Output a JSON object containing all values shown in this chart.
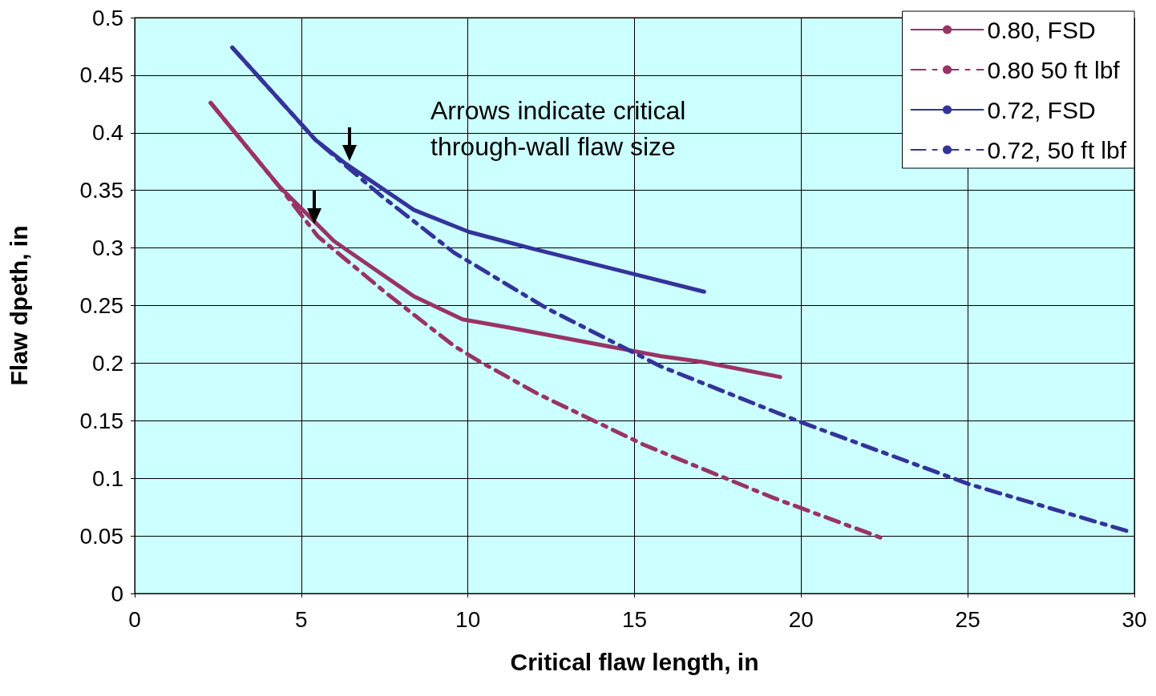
{
  "chart_data": {
    "type": "line",
    "xlabel": "Critical flaw length, in",
    "ylabel": "Flaw dpeth, in",
    "xlim": [
      0,
      30
    ],
    "xticks": [
      0,
      5,
      10,
      15,
      20,
      25,
      30
    ],
    "ylim": [
      0,
      0.5
    ],
    "yticks": [
      0,
      0.05,
      0.1,
      0.15,
      0.2,
      0.25,
      0.3,
      0.35,
      0.4,
      0.45,
      0.5
    ],
    "grid": true,
    "legend": "top right",
    "marker": "none",
    "annotations": [
      "Arrows indicate critical\nthrough-wall flaw size"
    ],
    "series": [
      {
        "name": "0.80, FSD",
        "color": "#993366",
        "line_style": "solid",
        "x": [
          2.28,
          4.32,
          5.98,
          7.18,
          8.38,
          9.84,
          11.2,
          15.8,
          17.06,
          19.37
        ],
        "values": [
          0.426,
          0.354,
          0.306,
          0.282,
          0.258,
          0.238,
          0.231,
          0.206,
          0.201,
          0.188
        ]
      },
      {
        "name": "0.80 50 ft lbf",
        "color": "#993366",
        "line_style": "dashed",
        "x": [
          2.28,
          4.32,
          5.5,
          7.54,
          9.58,
          10.32,
          12.12,
          15.29,
          19.17,
          22.53
        ],
        "values": [
          0.426,
          0.354,
          0.31,
          0.261,
          0.215,
          0.202,
          0.173,
          0.129,
          0.083,
          0.047
        ]
      },
      {
        "name": "0.72, FSD",
        "color": "#333399",
        "line_style": "solid",
        "x": [
          2.93,
          5.42,
          6.34,
          8.38,
          10.03,
          11.86,
          15.02,
          17.09
        ],
        "values": [
          0.474,
          0.394,
          0.373,
          0.333,
          0.314,
          0.3,
          0.277,
          0.262
        ]
      },
      {
        "name": "0.72, 50 ft lbf",
        "color": "#333399",
        "line_style": "dashed",
        "x": [
          2.93,
          5.42,
          7.37,
          9.58,
          12.34,
          15.8,
          19.97,
          25.03,
          29.93
        ],
        "values": [
          0.474,
          0.394,
          0.346,
          0.296,
          0.248,
          0.197,
          0.149,
          0.095,
          0.053
        ]
      }
    ]
  }
}
